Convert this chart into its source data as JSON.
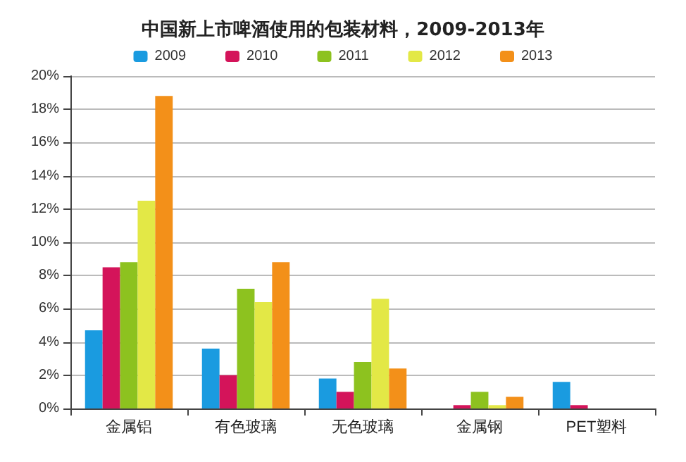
{
  "chart_data": {
    "type": "bar",
    "title": "中国新上市啤酒使用的包装材料，2009-2013年",
    "categories": [
      "金属铝",
      "有色玻璃",
      "无色玻璃",
      "金属钢",
      "PET塑料"
    ],
    "series": [
      {
        "name": "2009",
        "color": "#1a9be0",
        "values": [
          4.7,
          3.6,
          1.8,
          0,
          1.6
        ]
      },
      {
        "name": "2010",
        "color": "#d4145a",
        "values": [
          8.5,
          2.0,
          1.0,
          0.2,
          0.2
        ]
      },
      {
        "name": "2011",
        "color": "#8dc21f",
        "values": [
          8.8,
          7.2,
          2.8,
          1.0,
          0
        ]
      },
      {
        "name": "2012",
        "color": "#e3e846",
        "values": [
          12.5,
          6.4,
          6.6,
          0.2,
          0
        ]
      },
      {
        "name": "2013",
        "color": "#f39019",
        "values": [
          18.8,
          8.8,
          2.4,
          0.7,
          0
        ]
      }
    ],
    "ylim": [
      0,
      20
    ],
    "yticks": [
      {
        "value": 0,
        "label": "0%"
      },
      {
        "value": 2,
        "label": "2%"
      },
      {
        "value": 4,
        "label": "4%"
      },
      {
        "value": 6,
        "label": "6%"
      },
      {
        "value": 8,
        "label": "8%"
      },
      {
        "value": 10,
        "label": "10%"
      },
      {
        "value": 12,
        "label": "12%"
      },
      {
        "value": 14,
        "label": "14%"
      },
      {
        "value": 16,
        "label": "16%"
      },
      {
        "value": 18,
        "label": "18%"
      },
      {
        "value": 20,
        "label": "20%"
      }
    ],
    "grid": "y",
    "legend": "top"
  }
}
